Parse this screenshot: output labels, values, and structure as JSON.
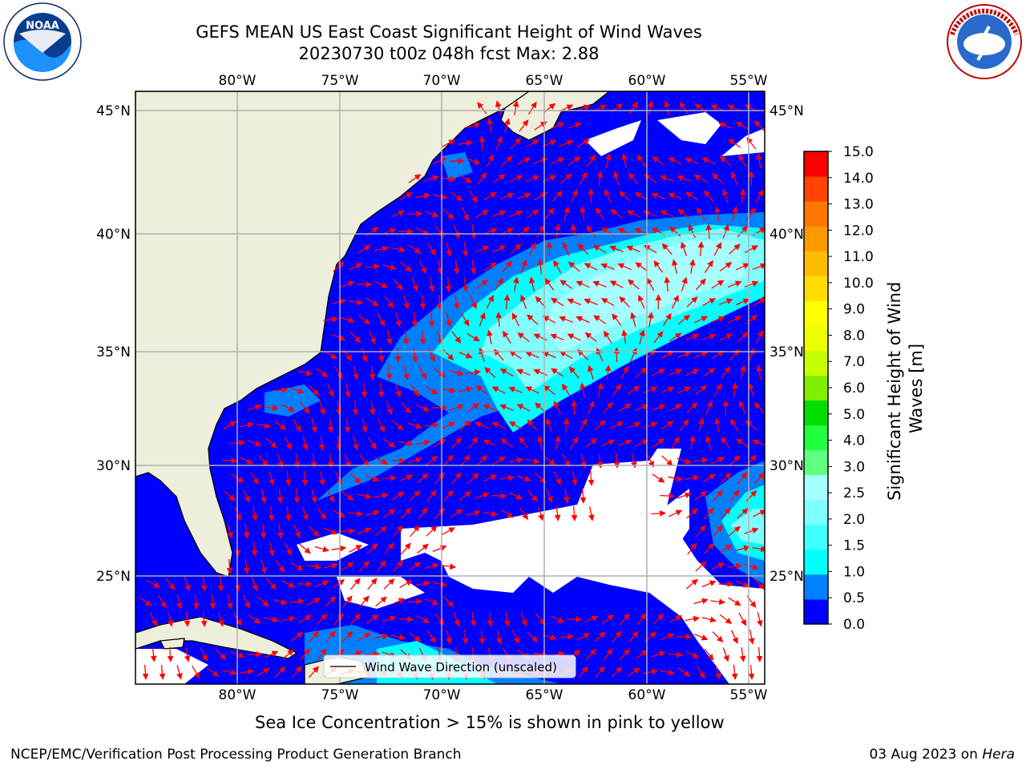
{
  "header": {
    "title_line1": "GEFS MEAN US East Coast Significant Height of Wind Waves",
    "title_line2": "20230730 t00z 048h fcst   Max: 2.88"
  },
  "logos": {
    "left": {
      "icon": "noaa-logo",
      "text": "NOAA"
    },
    "right": {
      "icon": "nws-logo",
      "text": "NATIONAL WEATHER SERVICE"
    }
  },
  "map": {
    "lon_labels": [
      "80°W",
      "75°W",
      "70°W",
      "65°W",
      "60°W",
      "55°W"
    ],
    "lat_labels": [
      "45°N",
      "40°N",
      "35°N",
      "30°N",
      "25°N"
    ],
    "legend_label": "Wind Wave Direction (unscaled)",
    "colors": {
      "land": "#eeeedc",
      "ocean_low": "#0000ff",
      "ocean_mid": "#0080ff",
      "ocean_high": "#00ffff",
      "arrow": "#ff0000",
      "grid": "#b0b0b0",
      "no_data": "#ffffff"
    }
  },
  "colorbar": {
    "label": "Significant Height of Wind Waves [m]",
    "ticks": [
      "0.0",
      "0.5",
      "1.0",
      "1.5",
      "2.0",
      "2.5",
      "3.0",
      "4.0",
      "5.0",
      "6.0",
      "7.0",
      "8.0",
      "9.0",
      "10.0",
      "11.0",
      "12.0",
      "13.0",
      "14.0",
      "15.0"
    ],
    "colors": [
      "#0000ff",
      "#0080ff",
      "#00ffff",
      "#40ffff",
      "#80ffff",
      "#a8ffff",
      "#60ff80",
      "#20ff40",
      "#00dd00",
      "#80ee00",
      "#c8ff00",
      "#eeff00",
      "#ffff00",
      "#ffdd00",
      "#ffbb00",
      "#ff9900",
      "#ff7700",
      "#ff4400",
      "#ff0000"
    ]
  },
  "footer": {
    "note": "Sea Ice Concentration > 15% is shown in pink to yellow",
    "credit_left": "NCEP/EMC/Verification Post Processing Product Generation Branch",
    "credit_right_date": "03 Aug 2023 on",
    "credit_right_host": "Hera"
  }
}
